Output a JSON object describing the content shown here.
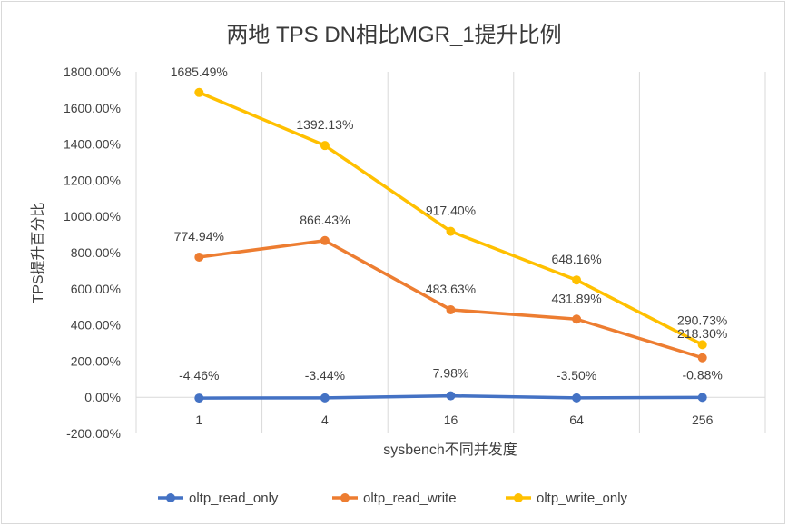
{
  "chart_data": {
    "type": "line",
    "title": "两地 TPS DN相比MGR_1提升比例",
    "xlabel": "sysbench不同并发度",
    "ylabel": "TPS提升百分比",
    "categories": [
      "1",
      "4",
      "16",
      "64",
      "256"
    ],
    "ylim": [
      -200,
      1800
    ],
    "yticks": [
      -200,
      0,
      200,
      400,
      600,
      800,
      1000,
      1200,
      1400,
      1600,
      1800
    ],
    "ytick_labels": [
      "-200.00%",
      "0.00%",
      "200.00%",
      "400.00%",
      "600.00%",
      "800.00%",
      "1000.00%",
      "1200.00%",
      "1400.00%",
      "1600.00%",
      "1800.00%"
    ],
    "grid": "vertical-category-lines",
    "legend_position": "bottom",
    "series": [
      {
        "name": "oltp_read_only",
        "color": "#4472c4",
        "values": [
          -4.46,
          -3.44,
          7.98,
          -3.5,
          -0.88
        ],
        "labels": [
          "-4.46%",
          "-3.44%",
          "7.98%",
          "-3.50%",
          "-0.88%"
        ]
      },
      {
        "name": "oltp_read_write",
        "color": "#ed7d31",
        "values": [
          774.94,
          866.43,
          483.63,
          431.89,
          218.3
        ],
        "labels": [
          "774.94%",
          "866.43%",
          "483.63%",
          "431.89%",
          "218.30%"
        ]
      },
      {
        "name": "oltp_write_only",
        "color": "#ffc000",
        "values": [
          1685.49,
          1392.13,
          917.4,
          648.16,
          290.73
        ],
        "labels": [
          "1685.49%",
          "1392.13%",
          "917.40%",
          "648.16%",
          "290.73%"
        ]
      }
    ]
  }
}
